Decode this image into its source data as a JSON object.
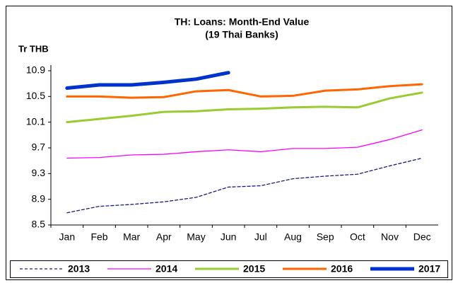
{
  "chart_data": {
    "type": "line",
    "title": "TH: Loans: Month-End Value",
    "subtitle": "(19 Thai Banks)",
    "y_label": "Tr THB",
    "categories": [
      "Jan",
      "Feb",
      "Mar",
      "Apr",
      "May",
      "Jun",
      "Jul",
      "Aug",
      "Sep",
      "Oct",
      "Nov",
      "Dec"
    ],
    "ylim": [
      8.5,
      10.9
    ],
    "yticks": [
      8.5,
      8.9,
      9.3,
      9.7,
      10.1,
      10.5,
      10.9
    ],
    "grid": false,
    "legend": "bottom",
    "series": [
      {
        "name": "2013",
        "color": "#1a1a80",
        "dash": true,
        "values": [
          8.69,
          8.79,
          8.82,
          8.86,
          8.93,
          9.09,
          9.11,
          9.22,
          9.26,
          9.29,
          9.42,
          9.54
        ]
      },
      {
        "name": "2014",
        "color": "#ff00ff",
        "values": [
          9.54,
          9.55,
          9.59,
          9.6,
          9.64,
          9.67,
          9.64,
          9.69,
          9.69,
          9.71,
          9.83,
          9.98
        ]
      },
      {
        "name": "2015",
        "color": "#99cc33",
        "values": [
          10.1,
          10.15,
          10.2,
          10.26,
          10.27,
          10.3,
          10.31,
          10.33,
          10.34,
          10.33,
          10.47,
          10.56
        ]
      },
      {
        "name": "2016",
        "color": "#ff6600",
        "values": [
          10.5,
          10.5,
          10.48,
          10.49,
          10.58,
          10.6,
          10.5,
          10.51,
          10.59,
          10.61,
          10.66,
          10.69
        ]
      },
      {
        "name": "2017",
        "color": "#0033cc",
        "values": [
          10.63,
          10.68,
          10.68,
          10.72,
          10.77,
          10.87,
          null,
          null,
          null,
          null,
          null,
          null
        ]
      }
    ]
  }
}
